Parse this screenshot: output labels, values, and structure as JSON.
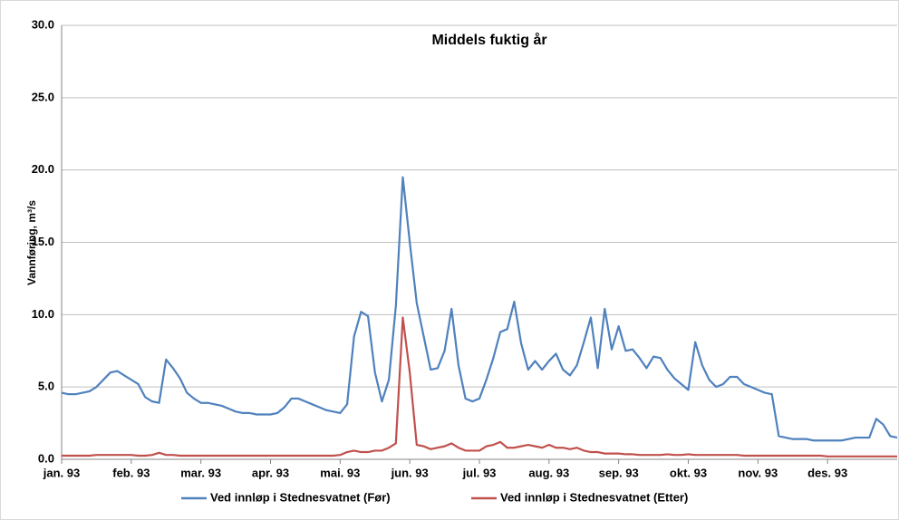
{
  "chart_data": {
    "type": "line",
    "title": "Middels fuktig år",
    "y_label": "Vannføring, m³/s",
    "categories": [
      "jan. 93",
      null,
      null,
      null,
      null,
      null,
      null,
      null,
      null,
      null,
      "feb. 93",
      null,
      null,
      null,
      null,
      null,
      null,
      null,
      null,
      null,
      "mar. 93",
      null,
      null,
      null,
      null,
      null,
      null,
      null,
      null,
      null,
      "apr. 93",
      null,
      null,
      null,
      null,
      null,
      null,
      null,
      null,
      null,
      "mai. 93",
      null,
      null,
      null,
      null,
      null,
      null,
      null,
      null,
      null,
      "jun. 93",
      null,
      null,
      null,
      null,
      null,
      null,
      null,
      null,
      null,
      "jul. 93",
      null,
      null,
      null,
      null,
      null,
      null,
      null,
      null,
      null,
      "aug. 93",
      null,
      null,
      null,
      null,
      null,
      null,
      null,
      null,
      null,
      "sep. 93",
      null,
      null,
      null,
      null,
      null,
      null,
      null,
      null,
      null,
      "okt. 93",
      null,
      null,
      null,
      null,
      null,
      null,
      null,
      null,
      null,
      "nov. 93",
      null,
      null,
      null,
      null,
      null,
      null,
      null,
      null,
      null,
      "des. 93",
      null,
      null,
      null,
      null,
      null,
      null,
      null,
      null,
      null,
      null
    ],
    "series": [
      {
        "name": "Ved innløp i Stednesvatnet (Før)",
        "color": "#4f81bd",
        "values": [
          4.6,
          4.5,
          4.5,
          4.6,
          4.7,
          5.0,
          5.5,
          6.0,
          6.1,
          5.8,
          5.5,
          5.2,
          4.3,
          4.0,
          3.9,
          6.9,
          6.3,
          5.6,
          4.6,
          4.2,
          3.9,
          3.9,
          3.8,
          3.7,
          3.5,
          3.3,
          3.2,
          3.2,
          3.1,
          3.1,
          3.1,
          3.2,
          3.6,
          4.2,
          4.2,
          4.0,
          3.8,
          3.6,
          3.4,
          3.3,
          3.2,
          3.8,
          8.5,
          10.2,
          9.9,
          6.0,
          4.0,
          5.5,
          10.6,
          19.5,
          15.0,
          10.8,
          8.5,
          6.2,
          6.3,
          7.5,
          10.4,
          6.5,
          4.2,
          4.0,
          4.2,
          5.5,
          7.0,
          8.8,
          9.0,
          10.9,
          8.0,
          6.2,
          6.8,
          6.2,
          6.8,
          7.3,
          6.2,
          5.8,
          6.5,
          8.1,
          9.8,
          6.3,
          10.4,
          7.6,
          9.2,
          7.5,
          7.6,
          7.0,
          6.3,
          7.1,
          7.0,
          6.2,
          5.6,
          5.2,
          4.8,
          8.1,
          6.5,
          5.5,
          5.0,
          5.2,
          5.7,
          5.7,
          5.2,
          5.0,
          4.8,
          4.6,
          4.5,
          1.6,
          1.5,
          1.4,
          1.4,
          1.4,
          1.3,
          1.3,
          1.3,
          1.3,
          1.3,
          1.4,
          1.5,
          1.5,
          1.5,
          2.8,
          2.4,
          1.6,
          1.5
        ]
      },
      {
        "name": "Ved innløp i Stednesvatnet (Etter)",
        "color": "#c0504d",
        "values": [
          0.25,
          0.25,
          0.25,
          0.25,
          0.25,
          0.3,
          0.3,
          0.3,
          0.3,
          0.3,
          0.3,
          0.25,
          0.25,
          0.3,
          0.45,
          0.3,
          0.3,
          0.25,
          0.25,
          0.25,
          0.25,
          0.25,
          0.25,
          0.25,
          0.25,
          0.25,
          0.25,
          0.25,
          0.25,
          0.25,
          0.25,
          0.25,
          0.25,
          0.25,
          0.25,
          0.25,
          0.25,
          0.25,
          0.25,
          0.25,
          0.3,
          0.5,
          0.6,
          0.5,
          0.5,
          0.6,
          0.6,
          0.8,
          1.1,
          9.8,
          6.0,
          1.0,
          0.9,
          0.7,
          0.8,
          0.9,
          1.1,
          0.8,
          0.6,
          0.6,
          0.6,
          0.9,
          1.0,
          1.2,
          0.8,
          0.8,
          0.9,
          1.0,
          0.9,
          0.8,
          1.0,
          0.8,
          0.8,
          0.7,
          0.8,
          0.6,
          0.5,
          0.5,
          0.4,
          0.4,
          0.4,
          0.35,
          0.35,
          0.3,
          0.3,
          0.3,
          0.3,
          0.35,
          0.3,
          0.3,
          0.35,
          0.3,
          0.3,
          0.3,
          0.3,
          0.3,
          0.3,
          0.3,
          0.25,
          0.25,
          0.25,
          0.25,
          0.25,
          0.25,
          0.25,
          0.25,
          0.25,
          0.25,
          0.25,
          0.25,
          0.2,
          0.2,
          0.2,
          0.2,
          0.2,
          0.2,
          0.2,
          0.2,
          0.2,
          0.2,
          0.2
        ]
      }
    ],
    "ylim": [
      0,
      30
    ],
    "yticks": [
      {
        "value": 0,
        "label": "0.0"
      },
      {
        "value": 5,
        "label": "5.0"
      },
      {
        "value": 10,
        "label": "10.0"
      },
      {
        "value": 15,
        "label": "15.0"
      },
      {
        "value": 20,
        "label": "20.0"
      },
      {
        "value": 25,
        "label": "25.0"
      },
      {
        "value": 30,
        "label": "30.0"
      }
    ],
    "grid": true,
    "legend": "bottom"
  }
}
